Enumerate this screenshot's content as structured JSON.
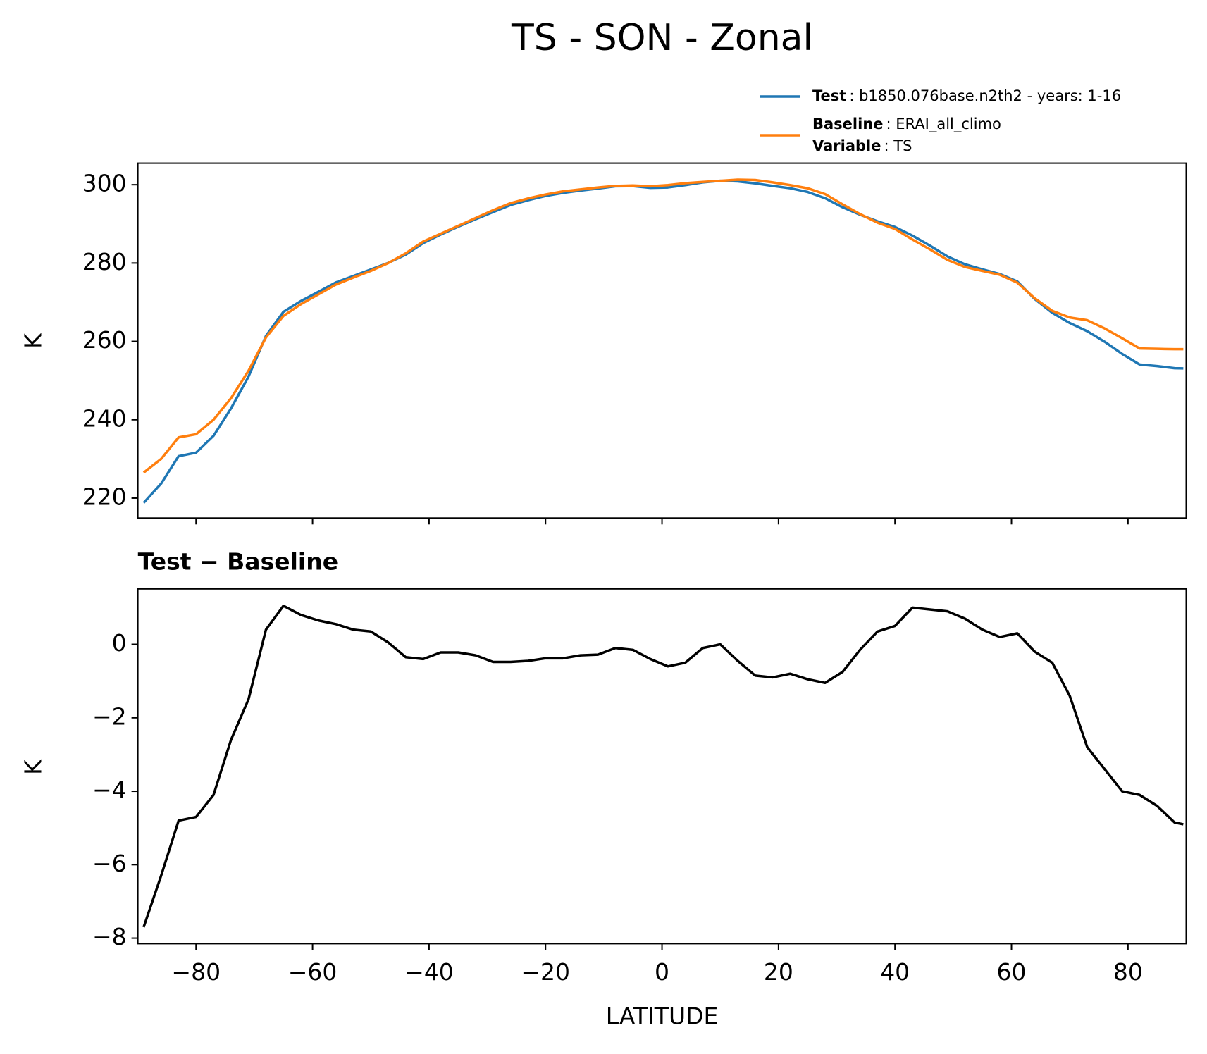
{
  "figure_title": "TS - SON - Zonal",
  "chart_data": [
    {
      "type": "line",
      "ylabel": "K",
      "x": [
        -89,
        -86,
        -83,
        -80,
        -77,
        -74,
        -71,
        -68,
        -65,
        -62,
        -59,
        -56,
        -53,
        -50,
        -47,
        -44,
        -41,
        -38,
        -35,
        -32,
        -29,
        -26,
        -23,
        -20,
        -17,
        -14,
        -11,
        -8,
        -5,
        -2,
        1,
        4,
        7,
        10,
        13,
        16,
        19,
        22,
        25,
        28,
        31,
        34,
        37,
        40,
        43,
        46,
        49,
        52,
        55,
        58,
        61,
        64,
        67,
        70,
        73,
        76,
        79,
        82,
        85,
        88,
        89.5
      ],
      "series": [
        {
          "name": "Test",
          "description": ": b1850.076base.n2th2 - years: 1-16",
          "color": "#1f77b4",
          "values": [
            218.8,
            223.7,
            230.7,
            231.6,
            235.9,
            242.9,
            251.0,
            261.4,
            267.55,
            270.3,
            272.65,
            275.05,
            276.7,
            278.35,
            280.05,
            282.15,
            285.1,
            287.28,
            289.28,
            291.2,
            293.02,
            294.82,
            296.05,
            297.12,
            297.92,
            298.5,
            299.02,
            299.6,
            299.65,
            299.2,
            299.3,
            299.9,
            300.6,
            301.0,
            300.85,
            300.35,
            299.7,
            299.1,
            298.15,
            296.55,
            294.25,
            292.35,
            290.65,
            289.2,
            287,
            284.45,
            281.7,
            279.7,
            278.4,
            277.2,
            275.3,
            270.8,
            267.3,
            264.7,
            262.6,
            259.9,
            256.8,
            254.1,
            253.7,
            253.15,
            253.1
          ]
        },
        {
          "name": "Baseline",
          "description": ": ERAI_all_climo",
          "color": "#ff7f0e",
          "values": [
            226.5,
            230,
            235.5,
            236.3,
            240,
            245.5,
            252.5,
            261,
            266.5,
            269.5,
            272,
            274.5,
            276.3,
            278,
            280,
            282.5,
            285.5,
            287.5,
            289.5,
            291.5,
            293.5,
            295.3,
            296.5,
            297.5,
            298.3,
            298.8,
            299.3,
            299.7,
            299.8,
            299.6,
            299.9,
            300.4,
            300.7,
            301.0,
            301.3,
            301.2,
            300.6,
            299.9,
            299.1,
            297.6,
            295,
            292.5,
            290.3,
            288.7,
            286,
            283.5,
            280.8,
            279,
            278,
            277,
            275,
            271,
            267.8,
            266.1,
            265.4,
            263.3,
            260.8,
            258.2,
            258.1,
            258.0,
            258.0
          ]
        }
      ],
      "legend_extra": {
        "name": "Variable",
        "description": ": TS"
      },
      "legend": "upper right outside",
      "xlim": [
        -90,
        90
      ],
      "xticks": [
        -80,
        -60,
        -40,
        -20,
        0,
        20,
        40,
        60,
        80
      ],
      "ylim": [
        214.9,
        305.5
      ],
      "yticks": [
        220,
        240,
        260,
        280,
        300
      ]
    },
    {
      "type": "line",
      "title": "Test − Baseline",
      "xlabel": "LATITUDE",
      "ylabel": "K",
      "x": [
        -89,
        -86,
        -83,
        -80,
        -77,
        -74,
        -71,
        -68,
        -65,
        -62,
        -59,
        -56,
        -53,
        -50,
        -47,
        -44,
        -41,
        -38,
        -35,
        -32,
        -29,
        -26,
        -23,
        -20,
        -17,
        -14,
        -11,
        -8,
        -5,
        -2,
        1,
        4,
        7,
        10,
        13,
        16,
        19,
        22,
        25,
        28,
        31,
        34,
        37,
        40,
        43,
        46,
        49,
        52,
        55,
        58,
        61,
        64,
        67,
        70,
        73,
        76,
        79,
        82,
        85,
        88,
        89.5
      ],
      "series": [
        {
          "color": "#000000",
          "values": [
            -7.7,
            -6.3,
            -4.8,
            -4.7,
            -4.1,
            -2.6,
            -1.5,
            0.4,
            1.05,
            0.8,
            0.65,
            0.55,
            0.4,
            0.35,
            0.05,
            -0.35,
            -0.4,
            -0.22,
            -0.22,
            -0.3,
            -0.48,
            -0.48,
            -0.45,
            -0.38,
            -0.38,
            -0.3,
            -0.28,
            -0.1,
            -0.15,
            -0.4,
            -0.6,
            -0.5,
            -0.1,
            0.0,
            -0.45,
            -0.85,
            -0.9,
            -0.8,
            -0.95,
            -1.05,
            -0.75,
            -0.15,
            0.35,
            0.5,
            1.0,
            0.95,
            0.9,
            0.7,
            0.4,
            0.2,
            0.3,
            -0.2,
            -0.5,
            -1.4,
            -2.8,
            -3.4,
            -4.0,
            -4.1,
            -4.4,
            -4.85,
            -4.9
          ]
        }
      ],
      "xlim": [
        -90,
        90
      ],
      "xticks": [
        {
          "value": -80,
          "label": "−80"
        },
        {
          "value": -60,
          "label": "−60"
        },
        {
          "value": -40,
          "label": "−40"
        },
        {
          "value": -20,
          "label": "−20"
        },
        0,
        20,
        40,
        60,
        80
      ],
      "ylim": [
        -8.15,
        1.51
      ],
      "yticks": [
        {
          "value": -8,
          "label": "−8"
        },
        {
          "value": -6,
          "label": "−6"
        },
        {
          "value": -4,
          "label": "−4"
        },
        {
          "value": -2,
          "label": "−2"
        },
        0
      ]
    }
  ]
}
